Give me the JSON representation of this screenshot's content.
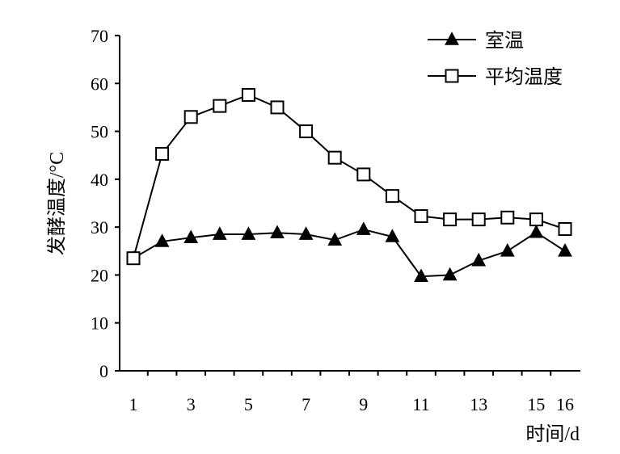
{
  "chart_data": {
    "type": "line",
    "title": "",
    "xlabel": "时间/d",
    "ylabel": "发酵温度/°C",
    "xlim": [
      1,
      16
    ],
    "ylim": [
      0,
      70
    ],
    "xticks": [
      1,
      3,
      5,
      7,
      9,
      11,
      13,
      15,
      16
    ],
    "yticks": [
      0,
      10,
      20,
      30,
      40,
      50,
      60,
      70
    ],
    "legend_position": "top-right",
    "grid": false,
    "series": [
      {
        "name": "室温",
        "marker": "filled-triangle",
        "x": [
          1,
          2,
          3,
          4,
          5,
          6,
          7,
          8,
          9,
          10,
          11,
          12,
          13,
          14,
          15,
          16
        ],
        "y": [
          23.5,
          27,
          27.8,
          28.5,
          28.5,
          28.8,
          28.5,
          27.3,
          29.5,
          28,
          19.7,
          20,
          23,
          25,
          28.9,
          25
        ]
      },
      {
        "name": "平均温度",
        "marker": "open-square",
        "x": [
          1,
          2,
          3,
          4,
          5,
          6,
          7,
          8,
          9,
          10,
          11,
          12,
          13,
          14,
          15,
          16
        ],
        "y": [
          23.5,
          45.3,
          53,
          55.3,
          57.6,
          55,
          50,
          44.5,
          41,
          36.5,
          32.3,
          31.6,
          31.6,
          32,
          31.6,
          29.6
        ]
      }
    ]
  }
}
